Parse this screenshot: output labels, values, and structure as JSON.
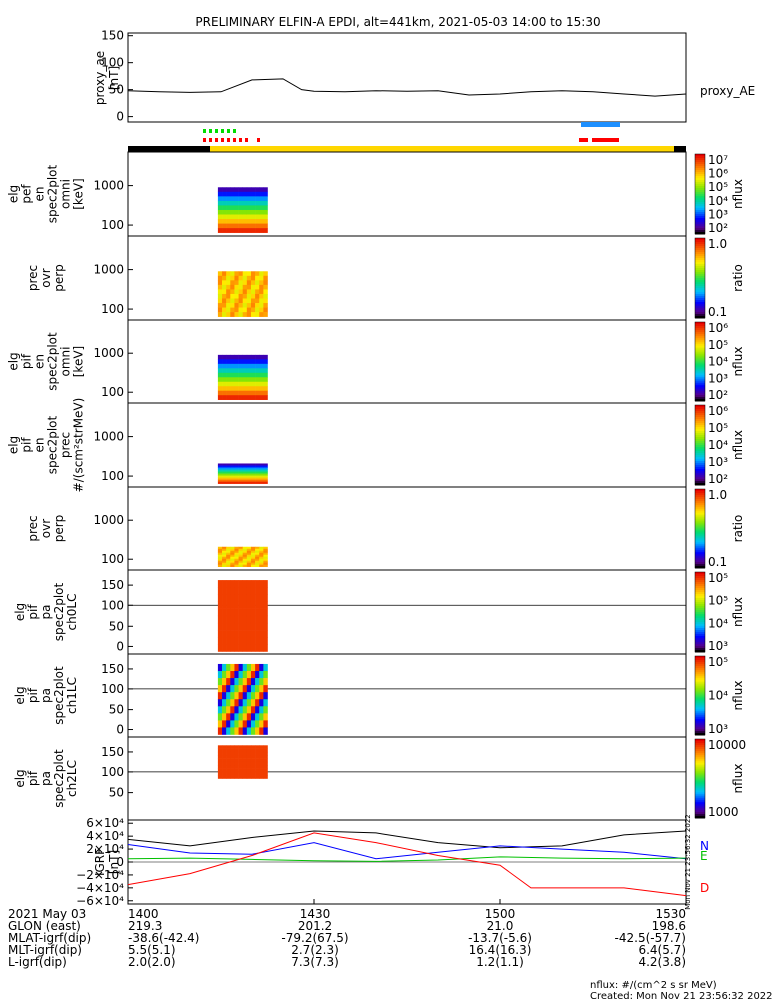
{
  "title": "PRELIMINARY ELFIN-A EPDI, alt=441km, 2021-05-03 14:00 to 15:30",
  "ae_panel": {
    "ylabel": "proxy_ae\n[nT]",
    "yticks": [
      "150",
      "100",
      "50",
      "0"
    ],
    "ylim": [
      -10,
      155
    ],
    "legend": "proxy_AE"
  },
  "panels": [
    {
      "ylabel": [
        "elg",
        "pef",
        "en",
        "spec2plot",
        "omni",
        "[keV]"
      ],
      "yticks": [
        "1000",
        "100"
      ],
      "cbar_label": "nflux",
      "cbar_ticks": [
        "10^7",
        "10^6",
        "10^5",
        "10^4",
        "10^3",
        "10^2"
      ]
    },
    {
      "ylabel": [
        "prec",
        "ovr",
        "perp"
      ],
      "yticks": [
        "1000",
        "100"
      ],
      "cbar_label": "ratio",
      "cbar_ticks": [
        "1.0",
        "0.1"
      ]
    },
    {
      "ylabel": [
        "elg",
        "pif",
        "en",
        "spec2plot",
        "omni",
        "[keV]"
      ],
      "yticks": [
        "1000",
        "100"
      ],
      "cbar_label": "nflux",
      "cbar_ticks": [
        "10^6",
        "10^5",
        "10^4",
        "10^3",
        "10^2"
      ]
    },
    {
      "ylabel": [
        "elg",
        "pif",
        "en",
        "spec2plot",
        "prec",
        "#/(scm²strMeV)"
      ],
      "yticks": [
        "1000",
        "100"
      ],
      "cbar_label": "nflux",
      "cbar_ticks": [
        "10^6",
        "10^5",
        "10^4",
        "10^3",
        "10^2"
      ]
    },
    {
      "ylabel": [
        "prec",
        "ovr",
        "perp"
      ],
      "yticks": [
        "1000",
        "100"
      ],
      "cbar_label": "ratio",
      "cbar_ticks": [
        "1.0",
        "0.1"
      ]
    },
    {
      "ylabel": [
        "elg",
        "pif",
        "pa",
        "spec2plot",
        "ch0LC"
      ],
      "yticks": [
        "150",
        "100",
        "50",
        "0"
      ],
      "cbar_label": "nflux",
      "cbar_ticks": [
        "10^5",
        "10^5",
        "10^4",
        "10^3"
      ]
    },
    {
      "ylabel": [
        "elg",
        "pif",
        "pa",
        "spec2plot",
        "ch1LC"
      ],
      "yticks": [
        "150",
        "100",
        "50",
        "0"
      ],
      "cbar_label": "nflux",
      "cbar_ticks": [
        "10^5",
        "10^4",
        "10^3"
      ]
    },
    {
      "ylabel": [
        "elg",
        "pif",
        "pa",
        "spec2plot",
        "ch2LC"
      ],
      "yticks": [
        "150",
        "100",
        "50"
      ],
      "cbar_label": "nflux",
      "cbar_ticks": [
        "10000",
        "1000"
      ]
    }
  ],
  "igrf_panel": {
    "ylabel": "IGRF\n[nT]",
    "yticks": [
      "6×10⁴",
      "4×10⁴",
      "2×10⁴",
      "0",
      "−2×10⁴",
      "−4×10⁴",
      "−6×10⁴"
    ],
    "legend": [
      "N",
      "E",
      "D"
    ],
    "legend_colors": [
      "#0000ff",
      "#00c000",
      "#ff0000"
    ],
    "side_stamp": "Mon Nov 21 23:56:32 2022"
  },
  "footer": {
    "rows": [
      {
        "label": "2021 May 03",
        "values": [
          "1400",
          "1430",
          "1500",
          "1530"
        ]
      },
      {
        "label": "GLON (east)",
        "values": [
          "219.3",
          "201.2",
          "21.0",
          "198.6"
        ]
      },
      {
        "label": "MLAT-igrf(dip)",
        "values": [
          "-38.6(-42.4)",
          "-79.2(67.5)",
          "-13.7(-5.6)",
          "-42.5(-57.7)"
        ]
      },
      {
        "label": "MLT-igrf(dip)",
        "values": [
          "5.5(5.1)",
          "2.7(2.3)",
          "16.4(16.3)",
          "6.4(5.7)"
        ]
      },
      {
        "label": "L-igrf(dip)",
        "values": [
          "2.0(2.0)",
          "7.3(7.3)",
          "1.2(1.1)",
          "4.2(3.8)"
        ]
      }
    ],
    "note1": "nflux: #/(cm^2 s sr MeV)",
    "note2": "Created: Mon Nov 21 23:56:32 2022"
  },
  "chart_data": {
    "type": "line",
    "title": "PRELIMINARY ELFIN-A EPDI, alt=441km, 2021-05-03 14:00 to 15:30",
    "x_unit": "minutes after 2021-05-03 14:00",
    "xlim": [
      0,
      90
    ],
    "series": [
      {
        "name": "proxy_AE",
        "x": [
          0,
          5,
          10,
          15,
          20,
          25,
          28,
          30,
          35,
          40,
          45,
          50,
          55,
          60,
          65,
          70,
          75,
          80,
          85,
          90
        ],
        "y": [
          48,
          46,
          45,
          46,
          68,
          70,
          50,
          47,
          46,
          48,
          47,
          48,
          40,
          42,
          46,
          48,
          46,
          42,
          38,
          42
        ]
      },
      {
        "name": "N",
        "x": [
          0,
          10,
          20,
          30,
          40,
          50,
          60,
          70,
          80,
          90
        ],
        "y": [
          27000,
          14000,
          12000,
          30000,
          5000,
          15000,
          25000,
          20000,
          15000,
          5000
        ]
      },
      {
        "name": "E",
        "x": [
          0,
          10,
          20,
          30,
          40,
          50,
          60,
          70,
          80,
          90
        ],
        "y": [
          5000,
          6000,
          4000,
          2000,
          1000,
          3000,
          8000,
          6000,
          5000,
          6000
        ]
      },
      {
        "name": "D",
        "x": [
          0,
          10,
          20,
          30,
          40,
          50,
          60,
          65,
          70,
          80,
          90
        ],
        "y": [
          -35000,
          -18000,
          10000,
          45000,
          30000,
          10000,
          -5000,
          -40000,
          -40000,
          -40000,
          -52000
        ]
      }
    ]
  }
}
